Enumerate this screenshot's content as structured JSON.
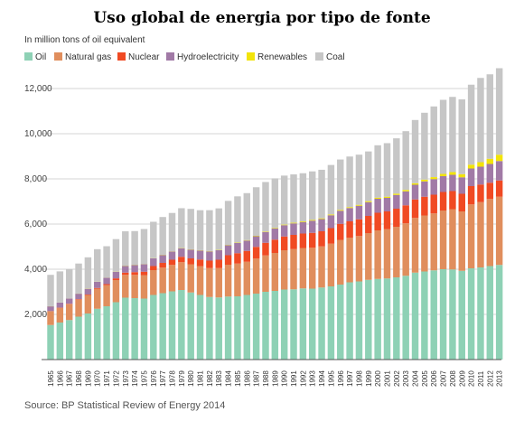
{
  "chart_data": {
    "type": "bar",
    "stacked": true,
    "title": "Uso global de energia por tipo de fonte",
    "units_label": "In million tons of oil equivalent",
    "source": "Source: BP Statistical Review of Energy 2014",
    "ylim": [
      0,
      12800
    ],
    "yticks": [
      2000,
      4000,
      6000,
      8000,
      10000,
      12000
    ],
    "ytick_labels": [
      "2,000",
      "4,000",
      "6,000",
      "8,000",
      "10,000",
      "12,000"
    ],
    "grid": true,
    "legend_position": "top-left",
    "categories": [
      "1965",
      "1966",
      "1967",
      "1968",
      "1969",
      "1970",
      "1971",
      "1972",
      "1973",
      "1974",
      "1975",
      "1976",
      "1977",
      "1978",
      "1979",
      "1980",
      "1981",
      "1982",
      "1983",
      "1984",
      "1985",
      "1986",
      "1987",
      "1988",
      "1989",
      "1990",
      "1991",
      "1992",
      "1993",
      "1994",
      "1995",
      "1996",
      "1997",
      "1998",
      "1999",
      "2000",
      "2001",
      "2002",
      "2003",
      "2004",
      "2005",
      "2006",
      "2007",
      "2008",
      "2009",
      "2010",
      "2011",
      "2012",
      "2013"
    ],
    "series": [
      {
        "name": "Oil",
        "color": "#8ed1b5",
        "values": [
          1530,
          1640,
          1750,
          1900,
          2040,
          2250,
          2360,
          2540,
          2740,
          2720,
          2700,
          2860,
          2940,
          3020,
          3080,
          2970,
          2860,
          2770,
          2750,
          2790,
          2800,
          2860,
          2920,
          3000,
          3040,
          3100,
          3110,
          3150,
          3140,
          3190,
          3240,
          3320,
          3420,
          3460,
          3530,
          3570,
          3590,
          3640,
          3710,
          3850,
          3900,
          3950,
          4000,
          3990,
          3930,
          4040,
          4080,
          4140,
          4190
        ]
      },
      {
        "name": "Natural gas",
        "color": "#e08e5d",
        "values": [
          610,
          650,
          700,
          750,
          810,
          880,
          930,
          980,
          1010,
          1030,
          1040,
          1100,
          1130,
          1170,
          1230,
          1250,
          1270,
          1280,
          1300,
          1410,
          1450,
          1470,
          1550,
          1610,
          1680,
          1740,
          1780,
          1790,
          1810,
          1820,
          1890,
          1980,
          1980,
          2010,
          2070,
          2150,
          2180,
          2240,
          2320,
          2420,
          2480,
          2520,
          2600,
          2670,
          2630,
          2830,
          2890,
          2970,
          3020
        ]
      },
      {
        "name": "Nuclear",
        "color": "#f04a23",
        "values": [
          6,
          10,
          20,
          26,
          30,
          40,
          50,
          75,
          100,
          120,
          150,
          180,
          210,
          230,
          240,
          260,
          300,
          330,
          370,
          420,
          460,
          480,
          520,
          560,
          590,
          610,
          630,
          640,
          660,
          670,
          690,
          710,
          720,
          740,
          760,
          780,
          790,
          800,
          800,
          820,
          830,
          830,
          820,
          800,
          780,
          810,
          780,
          720,
          720
        ]
      },
      {
        "name": "Hydroelectricity",
        "color": "#a17aa6",
        "values": [
          210,
          220,
          230,
          240,
          250,
          270,
          280,
          290,
          300,
          320,
          330,
          340,
          350,
          360,
          380,
          390,
          400,
          410,
          420,
          440,
          450,
          460,
          470,
          480,
          490,
          500,
          510,
          510,
          540,
          540,
          570,
          580,
          590,
          600,
          610,
          620,
          600,
          610,
          620,
          650,
          680,
          690,
          700,
          720,
          730,
          780,
          790,
          830,
          860
        ]
      },
      {
        "name": "Renewables",
        "color": "#f2e40a",
        "values": [
          5,
          5,
          6,
          6,
          7,
          7,
          8,
          8,
          9,
          9,
          10,
          10,
          11,
          11,
          12,
          12,
          13,
          14,
          15,
          16,
          17,
          19,
          20,
          22,
          24,
          26,
          28,
          30,
          32,
          34,
          36,
          38,
          40,
          42,
          45,
          48,
          52,
          56,
          62,
          68,
          78,
          88,
          100,
          120,
          140,
          170,
          200,
          230,
          280
        ]
      },
      {
        "name": "Coal",
        "color": "#c6c6c6",
        "values": [
          1390,
          1380,
          1300,
          1330,
          1390,
          1440,
          1390,
          1440,
          1520,
          1490,
          1550,
          1610,
          1670,
          1700,
          1760,
          1790,
          1770,
          1810,
          1840,
          1950,
          2050,
          2080,
          2150,
          2190,
          2200,
          2170,
          2140,
          2130,
          2150,
          2150,
          2190,
          2230,
          2240,
          2220,
          2200,
          2320,
          2370,
          2450,
          2600,
          2800,
          2960,
          3130,
          3280,
          3330,
          3310,
          3540,
          3730,
          3740,
          3830
        ]
      }
    ]
  }
}
